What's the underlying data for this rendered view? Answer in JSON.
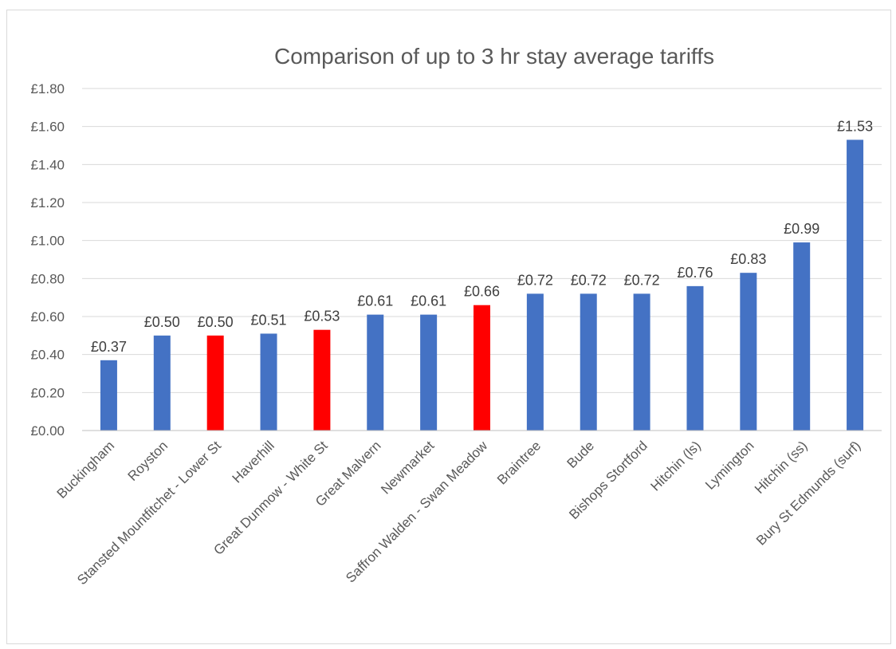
{
  "chart_data": {
    "type": "bar",
    "title": "Comparison of up to 3 hr stay average tariffs",
    "xlabel": "",
    "ylabel": "",
    "ylim": [
      0,
      1.8
    ],
    "ytick_values": [
      0,
      0.2,
      0.4,
      0.6,
      0.8,
      1.0,
      1.2,
      1.4,
      1.6,
      1.8
    ],
    "ytick_labels": [
      "£0.00",
      "£0.20",
      "£0.40",
      "£0.60",
      "£0.80",
      "£1.00",
      "£1.20",
      "£1.40",
      "£1.60",
      "£1.80"
    ],
    "grid": true,
    "categories": [
      "Buckingham",
      "Royston",
      "Stansted Mountfitchet - Lower St",
      "Haverhill",
      "Great Dunmow - White St",
      "Great Malvern",
      "Newmarket",
      "Saffron Walden - Swan Meadow",
      "Braintree",
      "Bude",
      "Bishops Stortford",
      "Hitchin (ls)",
      "Lymington",
      "Hitchin (ss)",
      "Bury St Edmunds (surf)"
    ],
    "values": [
      0.37,
      0.5,
      0.5,
      0.51,
      0.53,
      0.61,
      0.61,
      0.66,
      0.72,
      0.72,
      0.72,
      0.76,
      0.83,
      0.99,
      1.53
    ],
    "data_labels": [
      "£0.37",
      "£0.50",
      "£0.50",
      "£0.51",
      "£0.53",
      "£0.61",
      "£0.61",
      "£0.66",
      "£0.72",
      "£0.72",
      "£0.72",
      "£0.76",
      "£0.83",
      "£0.99",
      "£1.53"
    ],
    "bar_colors": [
      "#4472c4",
      "#4472c4",
      "#ff0000",
      "#4472c4",
      "#ff0000",
      "#4472c4",
      "#4472c4",
      "#ff0000",
      "#4472c4",
      "#4472c4",
      "#4472c4",
      "#4472c4",
      "#4472c4",
      "#4472c4",
      "#4472c4"
    ]
  }
}
